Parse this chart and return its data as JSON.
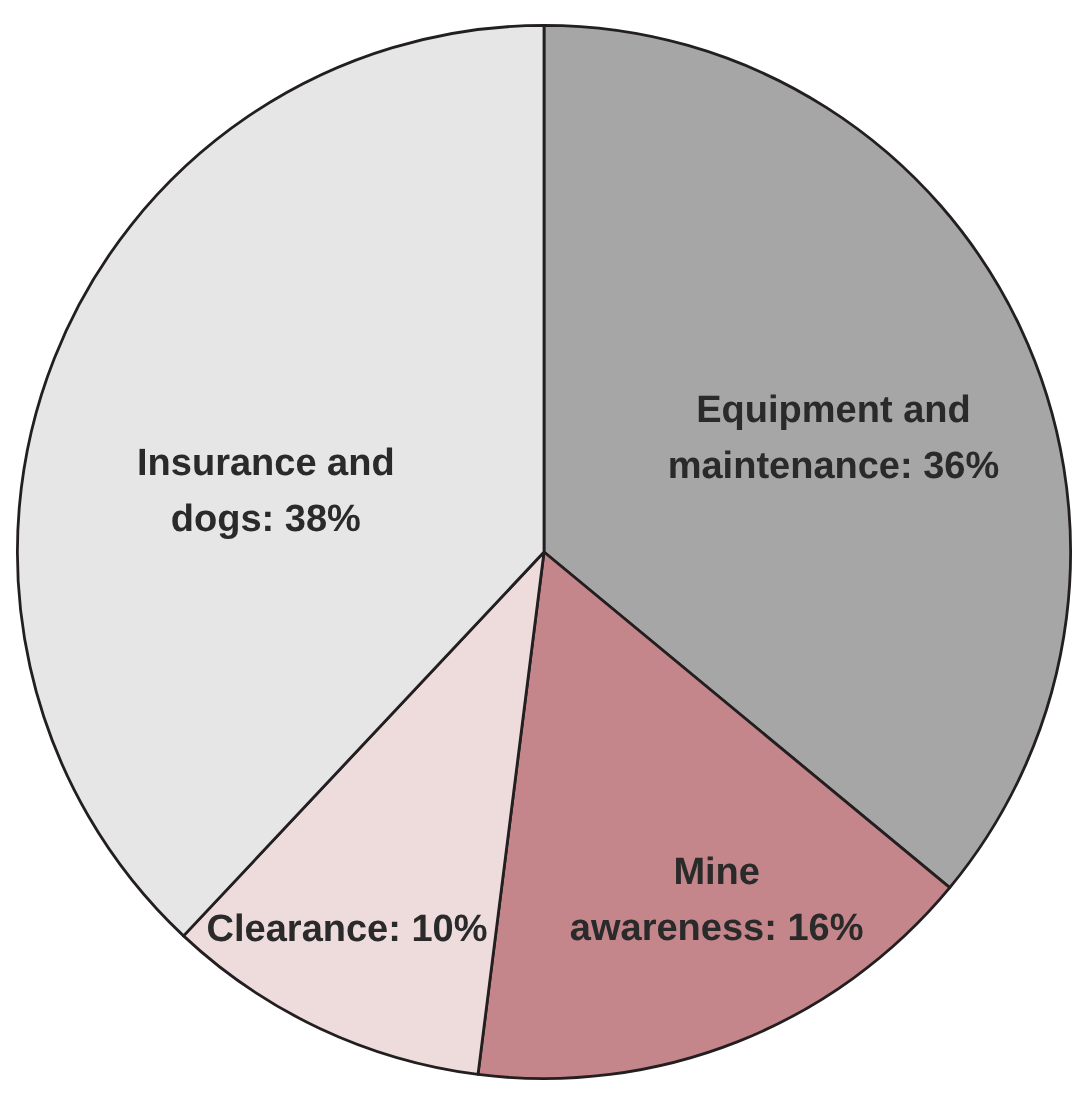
{
  "chart_data": {
    "type": "pie",
    "categories": [
      "Equipment and maintenance",
      "Mine awareness",
      "Clearance",
      "Insurance and dogs"
    ],
    "values": [
      36,
      16,
      10,
      38
    ],
    "colors": [
      "#a6a6a6",
      "#c4868b",
      "#eedcdd",
      "#e6e6e6"
    ],
    "value_labels": [
      "36%",
      "16%",
      "10%",
      "38%"
    ]
  }
}
